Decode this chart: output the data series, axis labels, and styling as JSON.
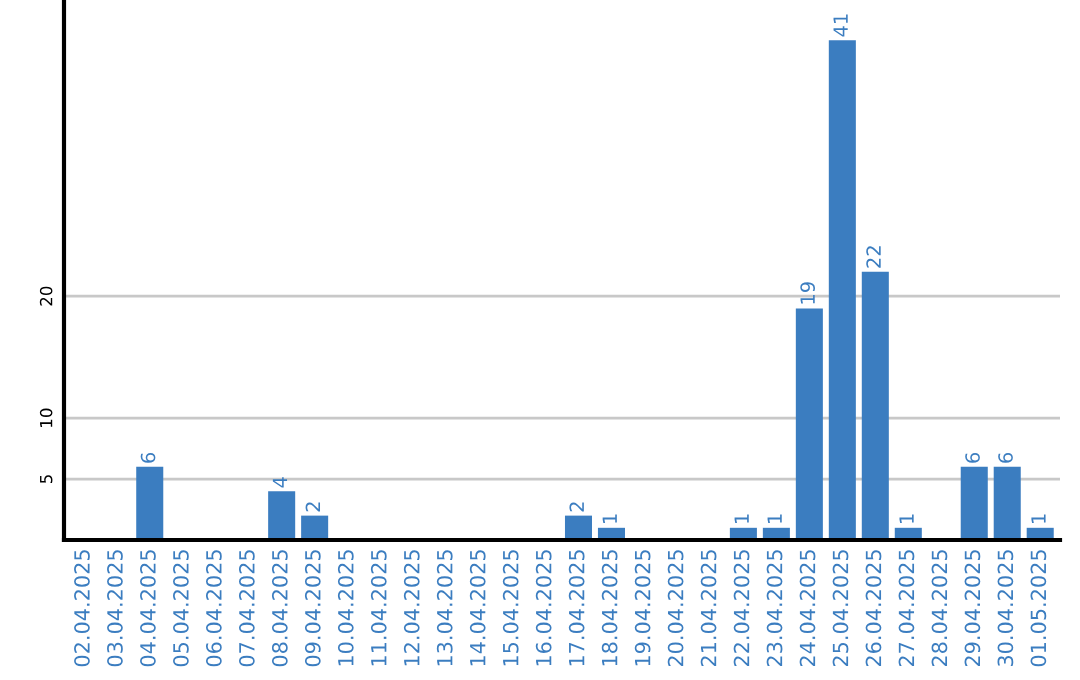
{
  "chart_data": {
    "type": "bar",
    "categories": [
      "02.04.2025",
      "03.04.2025",
      "04.04.2025",
      "05.04.2025",
      "06.04.2025",
      "07.04.2025",
      "08.04.2025",
      "09.04.2025",
      "10.04.2025",
      "11.04.2025",
      "12.04.2025",
      "13.04.2025",
      "14.04.2025",
      "15.04.2025",
      "16.04.2025",
      "17.04.2025",
      "18.04.2025",
      "19.04.2025",
      "20.04.2025",
      "21.04.2025",
      "22.04.2025",
      "23.04.2025",
      "24.04.2025",
      "25.04.2025",
      "26.04.2025",
      "27.04.2025",
      "28.04.2025",
      "29.04.2025",
      "30.04.2025",
      "01.05.2025"
    ],
    "values": [
      0,
      0,
      6,
      0,
      0,
      0,
      4,
      2,
      0,
      0,
      0,
      0,
      0,
      0,
      0,
      2,
      1,
      0,
      0,
      0,
      1,
      1,
      19,
      41,
      22,
      1,
      0,
      6,
      6,
      1
    ],
    "value_labels": [
      null,
      null,
      "6",
      null,
      null,
      null,
      "4",
      "2",
      null,
      null,
      null,
      null,
      null,
      null,
      null,
      "2",
      "1",
      null,
      null,
      null,
      "1",
      "1",
      "19",
      "41",
      "22",
      "1",
      null,
      "6",
      "6",
      "1"
    ],
    "color": "#3b7dc0",
    "ylim": [
      0,
      44.3
    ],
    "yticks": [
      5,
      10,
      20
    ],
    "grid": "y",
    "legend": false
  }
}
